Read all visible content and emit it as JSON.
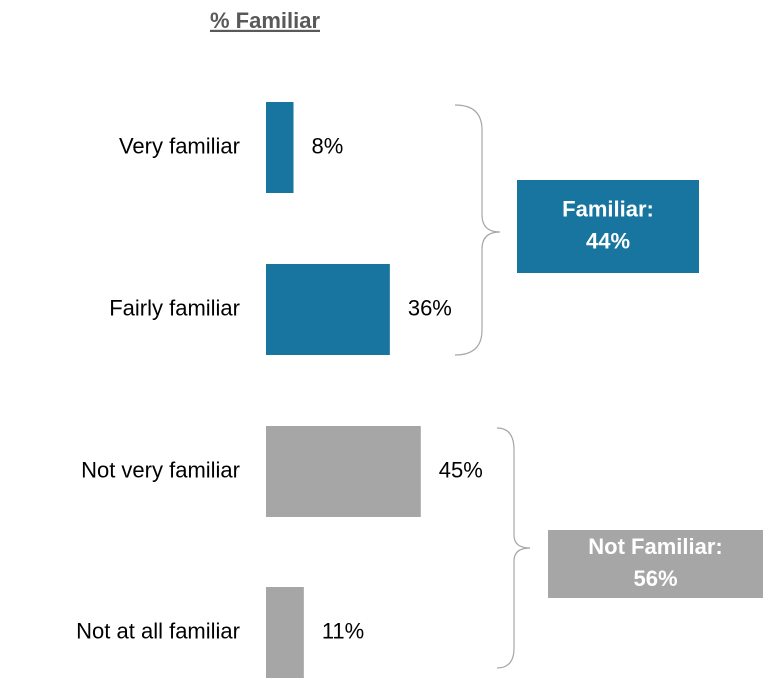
{
  "chart_data": {
    "type": "bar",
    "orientation": "horizontal",
    "title": "% Familiar",
    "categories": [
      "Very familiar",
      "Fairly familiar",
      "Not very familiar",
      "Not at all familiar"
    ],
    "values": [
      8,
      36,
      45,
      11
    ],
    "value_labels": [
      "8%",
      "36%",
      "45%",
      "11%"
    ],
    "colors": [
      "#1775a0",
      "#1775a0",
      "#a6a6a6",
      "#a6a6a6"
    ],
    "annotations": [
      {
        "lines": [
          "Familiar:",
          "44%"
        ],
        "color": "#1775a0"
      },
      {
        "lines": [
          "Not Familiar:",
          "56%"
        ],
        "color": "#a6a6a6"
      }
    ]
  }
}
